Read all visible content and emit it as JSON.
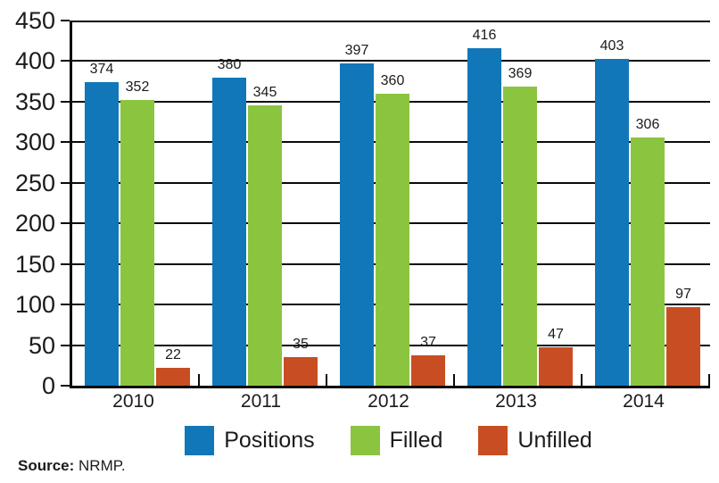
{
  "chart_data": {
    "type": "bar",
    "title": "",
    "xlabel": "",
    "ylabel": "",
    "categories": [
      "2010",
      "2011",
      "2012",
      "2013",
      "2014"
    ],
    "series": [
      {
        "name": "Positions",
        "color": "#1177b8",
        "values": [
          374,
          380,
          397,
          416,
          403
        ]
      },
      {
        "name": "Filled",
        "color": "#8bc540",
        "values": [
          352,
          345,
          360,
          369,
          306
        ]
      },
      {
        "name": "Unfilled",
        "color": "#c94d22",
        "values": [
          22,
          35,
          37,
          47,
          97
        ]
      }
    ],
    "ylim": [
      0,
      450
    ],
    "yticks": [
      0,
      50,
      100,
      150,
      200,
      250,
      300,
      350,
      400,
      450
    ],
    "grid": true,
    "value_labels": true,
    "legend_position": "bottom"
  },
  "colors": {
    "positions": "#1177b8",
    "filled": "#8bc540",
    "unfilled": "#c94d22",
    "axis": "#0a0a0a",
    "text": "#1b1b1b"
  },
  "source": {
    "label": "Source:",
    "text": "NRMP."
  }
}
